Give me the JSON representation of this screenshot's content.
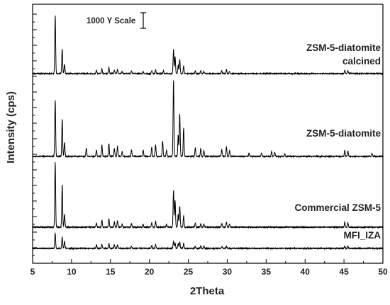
{
  "chart_data": {
    "type": "line",
    "title": "",
    "xlabel": "2Theta",
    "ylabel": "Intensity (cps)",
    "xlim": [
      5,
      50
    ],
    "x_ticks": [
      5,
      10,
      15,
      20,
      25,
      30,
      35,
      40,
      45,
      50
    ],
    "y_ticks_labeled": false,
    "scale_bar_label": "1000 Y Scale",
    "grid": false,
    "legend": "none",
    "stacked_offset": true,
    "line_color": "#000000",
    "series": [
      {
        "name": "ZSM-5-diatomite calcined",
        "label_lines": [
          "ZSM-5-diatomite",
          "calcined"
        ],
        "baseline": 0,
        "peaks": [
          [
            7.9,
            82
          ],
          [
            8.8,
            35
          ],
          [
            9.1,
            13
          ],
          [
            13.2,
            5
          ],
          [
            13.9,
            7
          ],
          [
            14.8,
            9
          ],
          [
            15.5,
            5
          ],
          [
            15.9,
            6
          ],
          [
            16.5,
            3
          ],
          [
            17.7,
            4
          ],
          [
            19.2,
            3
          ],
          [
            20.3,
            4
          ],
          [
            20.8,
            5
          ],
          [
            21.8,
            4
          ],
          [
            23.1,
            34
          ],
          [
            23.3,
            24
          ],
          [
            23.7,
            12
          ],
          [
            23.9,
            20
          ],
          [
            24.4,
            11
          ],
          [
            25.9,
            4
          ],
          [
            26.6,
            4
          ],
          [
            27.0,
            3
          ],
          [
            29.3,
            4
          ],
          [
            29.9,
            5
          ],
          [
            30.3,
            3
          ],
          [
            45.1,
            5
          ],
          [
            45.5,
            4
          ]
        ]
      },
      {
        "name": "ZSM-5-diatomite",
        "label_lines": [
          "ZSM-5-diatomite"
        ],
        "baseline": 0,
        "peaks": [
          [
            7.9,
            80
          ],
          [
            8.8,
            52
          ],
          [
            9.1,
            20
          ],
          [
            11.9,
            12
          ],
          [
            13.2,
            9
          ],
          [
            13.9,
            16
          ],
          [
            14.8,
            18
          ],
          [
            15.5,
            11
          ],
          [
            15.9,
            14
          ],
          [
            16.5,
            7
          ],
          [
            17.7,
            9
          ],
          [
            19.2,
            9
          ],
          [
            20.3,
            13
          ],
          [
            20.8,
            16
          ],
          [
            21.7,
            22
          ],
          [
            22.2,
            9
          ],
          [
            23.1,
            108
          ],
          [
            23.7,
            30
          ],
          [
            23.9,
            60
          ],
          [
            24.4,
            40
          ],
          [
            25.9,
            12
          ],
          [
            26.6,
            11
          ],
          [
            27.0,
            8
          ],
          [
            29.3,
            10
          ],
          [
            29.9,
            13
          ],
          [
            30.3,
            8
          ],
          [
            32.8,
            5
          ],
          [
            34.4,
            5
          ],
          [
            35.7,
            7
          ],
          [
            36.1,
            6
          ],
          [
            37.4,
            4
          ],
          [
            45.1,
            9
          ],
          [
            45.5,
            8
          ],
          [
            48.6,
            4
          ]
        ]
      },
      {
        "name": "Commercial ZSM-5",
        "label_lines": [
          "Commercial ZSM-5"
        ],
        "baseline": 0,
        "peaks": [
          [
            7.9,
            92
          ],
          [
            8.8,
            60
          ],
          [
            9.1,
            18
          ],
          [
            13.2,
            6
          ],
          [
            13.9,
            10
          ],
          [
            14.8,
            12
          ],
          [
            15.5,
            7
          ],
          [
            15.9,
            9
          ],
          [
            16.5,
            4
          ],
          [
            17.7,
            5
          ],
          [
            19.2,
            4
          ],
          [
            20.3,
            6
          ],
          [
            20.8,
            8
          ],
          [
            22.2,
            4
          ],
          [
            23.1,
            52
          ],
          [
            23.3,
            38
          ],
          [
            23.7,
            18
          ],
          [
            23.9,
            30
          ],
          [
            24.4,
            16
          ],
          [
            25.9,
            6
          ],
          [
            26.6,
            5
          ],
          [
            27.0,
            4
          ],
          [
            29.3,
            5
          ],
          [
            29.9,
            7
          ],
          [
            30.3,
            4
          ],
          [
            45.1,
            7
          ],
          [
            45.5,
            6
          ]
        ]
      },
      {
        "name": "MFI_IZA",
        "label_lines": [
          "MFI_IZA"
        ],
        "baseline": 0,
        "peaks": [
          [
            7.9,
            22
          ],
          [
            8.8,
            16
          ],
          [
            9.1,
            10
          ],
          [
            13.2,
            5
          ],
          [
            13.9,
            6
          ],
          [
            14.8,
            7
          ],
          [
            15.5,
            5
          ],
          [
            15.9,
            5
          ],
          [
            17.7,
            3
          ],
          [
            20.3,
            4
          ],
          [
            20.8,
            5
          ],
          [
            23.1,
            10
          ],
          [
            23.3,
            8
          ],
          [
            23.7,
            7
          ],
          [
            23.9,
            9
          ],
          [
            24.4,
            7
          ],
          [
            25.9,
            3
          ],
          [
            26.6,
            4
          ],
          [
            27.0,
            3
          ],
          [
            29.3,
            3
          ],
          [
            29.9,
            3
          ],
          [
            45.1,
            3
          ],
          [
            45.5,
            3
          ]
        ]
      }
    ]
  }
}
